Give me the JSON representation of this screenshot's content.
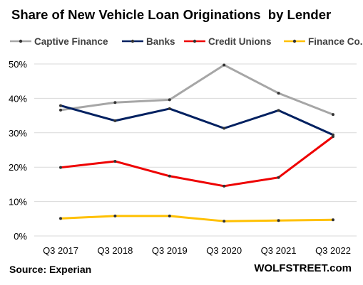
{
  "chart_data": {
    "type": "line",
    "title": "Share of New Vehicle Loan Originations  by Lender",
    "categories": [
      "Q3 2017",
      "Q3 2018",
      "Q3 2019",
      "Q3 2020",
      "Q3 2021",
      "Q3 2022"
    ],
    "ylim": [
      0,
      50
    ],
    "yticks": [
      "0%",
      "10%",
      "20%",
      "30%",
      "40%",
      "50%"
    ],
    "ytick_values": [
      0,
      10,
      20,
      30,
      40,
      50
    ],
    "grid": "horizontal",
    "legend_position": "top",
    "series": [
      {
        "name": "Captive Finance",
        "color": "#a6a6a6",
        "values": [
          36.6,
          38.8,
          39.6,
          49.7,
          41.5,
          35.3
        ]
      },
      {
        "name": "Banks",
        "color": "#002060",
        "values": [
          37.9,
          33.5,
          37.0,
          31.3,
          36.5,
          29.4
        ]
      },
      {
        "name": "Credit Unions",
        "color": "#ee0000",
        "values": [
          19.9,
          21.7,
          17.4,
          14.5,
          17.0,
          28.9
        ]
      },
      {
        "name": "Finance Co.",
        "color": "#ffc000",
        "values": [
          5.1,
          5.8,
          5.8,
          4.3,
          4.5,
          4.7
        ]
      }
    ]
  },
  "footer": {
    "source": "Source: Experian",
    "brand": "WOLFSTREET.com"
  }
}
